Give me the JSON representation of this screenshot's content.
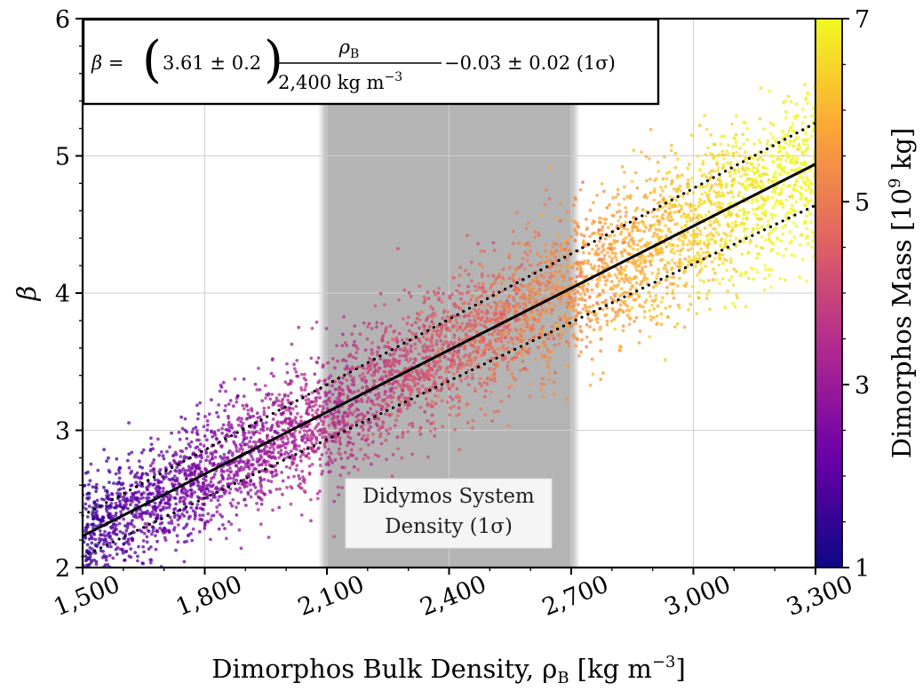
{
  "chart_data": {
    "type": "scatter",
    "xlabel": "Dimorphos Bulk Density, ρ",
    "xlabel_sub": "B",
    "xlabel_unit_pre": " [kg m",
    "xlabel_unit_sup": "−3",
    "xlabel_unit_post": "]",
    "ylabel": "β",
    "xlim": [
      1500,
      3300
    ],
    "ylim": [
      2,
      6
    ],
    "x_ticks": [
      1500,
      1800,
      2100,
      2400,
      2700,
      3000,
      3300
    ],
    "x_tick_labels": [
      "1,500",
      "1,800",
      "2,100",
      "2,400",
      "2,700",
      "3,000",
      "3,300"
    ],
    "y_ticks": [
      2,
      3,
      4,
      5,
      6
    ],
    "y_tick_labels": [
      "2",
      "3",
      "4",
      "5",
      "6"
    ],
    "grid": true,
    "colormap": "plasma",
    "colormap_stops": [
      "#0d0887",
      "#6a00a8",
      "#b12a90",
      "#e16462",
      "#fca636",
      "#f0f921"
    ],
    "colorbar": {
      "label_pre": "Dimorphos Mass [10",
      "label_sup": "9",
      "label_post": " kg]",
      "range": [
        1,
        7
      ],
      "ticks": [
        1,
        3,
        5,
        7
      ],
      "tick_labels": [
        "1",
        "3",
        "5",
        "7"
      ]
    },
    "fit": {
      "slope": 3.61,
      "slope_err": 0.2,
      "ref_density": 2400,
      "intercept": -0.03,
      "intercept_err": 0.02,
      "line_points": [
        [
          1500,
          2.23
        ],
        [
          3300,
          4.94
        ]
      ],
      "upper_band": [
        [
          1500,
          2.38
        ],
        [
          3300,
          5.24
        ]
      ],
      "lower_band": [
        [
          1500,
          2.08
        ],
        [
          3300,
          4.64
        ]
      ]
    },
    "equation": {
      "lhs": "β = ",
      "coef": "3.61 ± 0.2",
      "numerator": "ρ",
      "numerator_sub": "B",
      "denominator": "2,400 kg m",
      "denominator_sup": "−3",
      "tail": "−0.03 ± 0.02 (1σ)"
    },
    "shaded_region": {
      "x_range": [
        2100,
        2700
      ],
      "color": "#b4b4b4",
      "label_line1": "Didymos System",
      "label_line2": "Density (1σ)"
    },
    "scatter_spread": 0.3
  }
}
